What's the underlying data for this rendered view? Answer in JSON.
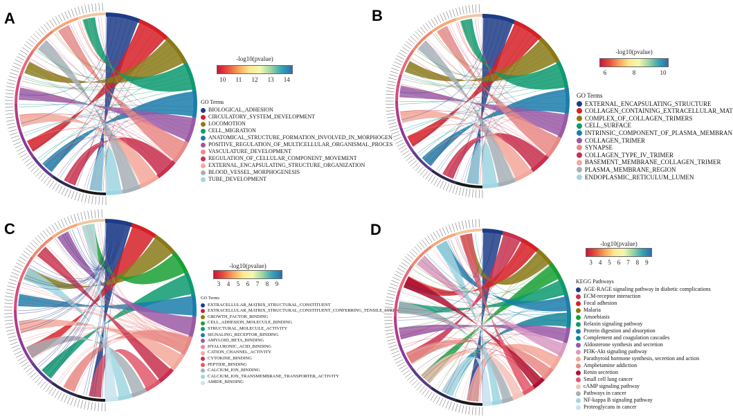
{
  "colorbar_gradient": [
    "#c7163c",
    "#e8513d",
    "#f8a55c",
    "#fde88d",
    "#f3f8b0",
    "#9fd5a4",
    "#38a5b2",
    "#2b6db5"
  ],
  "panels": [
    {
      "id": "A",
      "letter": "A",
      "colorbar": {
        "title": "-log10(pvalue)",
        "ticks": [
          "10",
          "11",
          "12",
          "13",
          "14"
        ]
      },
      "legend_title": "GO Terms",
      "terms": [
        {
          "label": "BIOLOGICAL_ADHESION",
          "color": "#1d3c87"
        },
        {
          "label": "CIRCULATORY_SYSTEM_DEVELOPMENT",
          "color": "#d62027"
        },
        {
          "label": "LOCOMOTION",
          "color": "#8a7a17"
        },
        {
          "label": "CELL_MIGRATION",
          "color": "#0d9a6f"
        },
        {
          "label": "ANATOMICAL_STRUCTURE_FORMATION_INVOLVED_IN_MORPHOGEN",
          "color": "#1b7dab"
        },
        {
          "label": "POSITIVE_REGULATION_OF_MULTICELLULAR_ORGANISMAL_PROCES",
          "color": "#9a59a6"
        },
        {
          "label": "VASCULATURE_DEVELOPMENT",
          "color": "#e98986"
        },
        {
          "label": "REGULATION_OF_CELLULAR_COMPONENT_MOVEMENT",
          "color": "#c8304e"
        },
        {
          "label": "EXTERNAL_ENCAPSULATING_STRUCTURE_ORGANIZATION",
          "color": "#f4a89a"
        },
        {
          "label": "BLOOD_VESSEL_MORPHOGENESIS",
          "color": "#a8b0b7"
        },
        {
          "label": "TUBE_DEVELOPMENT",
          "color": "#9fd6e0"
        }
      ]
    },
    {
      "id": "B",
      "letter": "B",
      "colorbar": {
        "title": "-log10(pvalue)",
        "ticks": [
          "6",
          "8",
          "10"
        ]
      },
      "legend_title": "GO Terms",
      "terms": [
        {
          "label": "EXTERNAL_ENCAPSULATING_STRUCTURE",
          "color": "#1d3c87"
        },
        {
          "label": "COLLAGEN_CONTAINING_EXTRACELLULAR_MATRIX",
          "color": "#d62027"
        },
        {
          "label": "COMPLEX_OF_COLLAGEN_TRIMERS",
          "color": "#8a7a17"
        },
        {
          "label": "CELL_SURFACE",
          "color": "#0d9a6f"
        },
        {
          "label": "INTRINSIC_COMPONENT_OF_PLASMA_MEMBRANE",
          "color": "#1b7dab"
        },
        {
          "label": "COLLAGEN_TRIMER",
          "color": "#9a59a6"
        },
        {
          "label": "SYNAPSE",
          "color": "#e98986"
        },
        {
          "label": "COLLAGEN_TYPE_IV_TRIMER",
          "color": "#c8304e"
        },
        {
          "label": "BASEMENT_MEMBRANE_COLLAGEN_TRIMER",
          "color": "#f4a89a"
        },
        {
          "label": "PLASMA_MEMBRANE_REGION",
          "color": "#a8b0b7"
        },
        {
          "label": "ENDOPLASMIC_RETICULUM_LUMEN",
          "color": "#9fd6e0"
        }
      ]
    },
    {
      "id": "C",
      "letter": "C",
      "colorbar": {
        "title": "-log10(pvalue)",
        "ticks": [
          "3",
          "4",
          "5",
          "6",
          "7",
          "8",
          "9"
        ]
      },
      "legend_title": "GO Terms",
      "terms": [
        {
          "label": "EXTRACELLULAR_MATRIX_STRUCTURAL_CONSTITUENT",
          "color": "#1d3c87"
        },
        {
          "label": "EXTRACELLULAR_MATRIX_STRUCTURAL_CONSTITUENT_CONFERRING_TENSILE_STRENGTH",
          "color": "#d62027"
        },
        {
          "label": "GROWTH_FACTOR_BINDING",
          "color": "#8a7a17"
        },
        {
          "label": "CELL_ADHESION_MOLECULE_BINDING",
          "color": "#19a034"
        },
        {
          "label": "STRUCTURAL_MOLECULE_ACTIVITY",
          "color": "#0d9a6f"
        },
        {
          "label": "SIGNALING_RECEPTOR_BINDING",
          "color": "#1b7dab"
        },
        {
          "label": "AMYLOID_BETA_BINDING",
          "color": "#9a59a6"
        },
        {
          "label": "HYALURONIC_ACID_BINDING",
          "color": "#e98986"
        },
        {
          "label": "CATION_CHANNEL_ACTIVITY",
          "color": "#f4a89a"
        },
        {
          "label": "CYTOKINE_BINDING",
          "color": "#c8304e"
        },
        {
          "label": "PEPTIDE_BINDING",
          "color": "#e2586a"
        },
        {
          "label": "CALCIUM_ION_BINDING",
          "color": "#a8b0b7"
        },
        {
          "label": "CALCIUM_ION_TRANSMEMBRANE_TRANSPORTER_ACTIVITY",
          "color": "#9fd6e0"
        },
        {
          "label": "AMIDE_BINDING",
          "color": "#c7e3ee"
        }
      ]
    },
    {
      "id": "D",
      "letter": "D",
      "colorbar": {
        "title": "-log10(pvalue)",
        "ticks": [
          "3",
          "4",
          "5",
          "6",
          "7",
          "8",
          "9"
        ]
      },
      "legend_title": "KEGG Pathways",
      "terms": [
        {
          "label": "AGE-RAGE signaling pathway in diabetic complications",
          "color": "#1d3c87"
        },
        {
          "label": "ECM-receptor interaction",
          "color": "#c8304e"
        },
        {
          "label": "Focal adhesion",
          "color": "#d62027"
        },
        {
          "label": "Malaria",
          "color": "#8a7a17"
        },
        {
          "label": "Amoebiasis",
          "color": "#19a034"
        },
        {
          "label": "Relaxin signaling pathway",
          "color": "#0d9a6f"
        },
        {
          "label": "Protein digestion and absorption",
          "color": "#1b7dab"
        },
        {
          "label": "Complement and coagulation cascades",
          "color": "#13869a"
        },
        {
          "label": "Aldosterone synthesis and secretion",
          "color": "#9a59a6"
        },
        {
          "label": "PI3K-Akt signaling pathway",
          "color": "#d99ac2"
        },
        {
          "label": "Parathyroid hormone synthesis, secretion and action",
          "color": "#f4a89a"
        },
        {
          "label": "Amphetamine addiction",
          "color": "#e98986"
        },
        {
          "label": "Renin secretion",
          "color": "#b0102f"
        },
        {
          "label": "Small cell lung cancer",
          "color": "#e2586a"
        },
        {
          "label": "cAMP signaling pathway",
          "color": "#f5c2b8"
        },
        {
          "label": "Pathways in cancer",
          "color": "#a8b0b7"
        },
        {
          "label": "NF-kappa B signaling pathway",
          "color": "#9fd6e0"
        },
        {
          "label": "Proteoglycans in cancer",
          "color": "#c7e3ee"
        }
      ]
    }
  ]
}
